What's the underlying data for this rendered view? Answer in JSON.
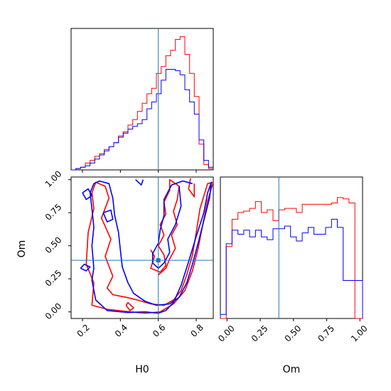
{
  "chart_data": {
    "type": "corner",
    "parameters": [
      "H0",
      "Om"
    ],
    "truth": {
      "H0": 0.6,
      "Om": 0.39
    },
    "colors": {
      "red_run": "#ff0000",
      "blue_run": "#0000ff",
      "truth": "#1f77b4"
    },
    "axes": {
      "H0": {
        "range": [
          0.14,
          0.89
        ],
        "ticks": [
          0.2,
          0.4,
          0.6,
          0.8
        ],
        "tick_labels": [
          "0.2",
          "0.4",
          "0.6",
          "0.8"
        ],
        "label": "H0"
      },
      "Om": {
        "range": [
          -0.05,
          1.02
        ],
        "ticks": [
          0.0,
          0.25,
          0.5,
          0.75,
          1.0
        ],
        "tick_labels": [
          "0.00",
          "0.25",
          "0.50",
          "0.75",
          "1.00"
        ],
        "label": "Om"
      }
    },
    "hist_H0": {
      "edges": [
        0.14,
        0.165,
        0.19,
        0.215,
        0.24,
        0.265,
        0.29,
        0.315,
        0.34,
        0.365,
        0.39,
        0.415,
        0.44,
        0.465,
        0.49,
        0.515,
        0.54,
        0.565,
        0.59,
        0.615,
        0.64,
        0.665,
        0.69,
        0.715,
        0.74,
        0.765,
        0.79,
        0.815,
        0.84,
        0.865,
        0.89
      ],
      "red": [
        0.0,
        0.01,
        0.02,
        0.05,
        0.07,
        0.1,
        0.12,
        0.15,
        0.17,
        0.2,
        0.25,
        0.28,
        0.33,
        0.37,
        0.43,
        0.49,
        0.56,
        0.6,
        0.71,
        0.76,
        0.84,
        0.88,
        0.96,
        0.98,
        0.85,
        0.71,
        0.54,
        0.19,
        0.04,
        0.01
      ],
      "blue": [
        0.0,
        0.01,
        0.02,
        0.03,
        0.05,
        0.08,
        0.11,
        0.14,
        0.17,
        0.2,
        0.24,
        0.27,
        0.3,
        0.32,
        0.34,
        0.37,
        0.45,
        0.5,
        0.56,
        0.66,
        0.74,
        0.74,
        0.73,
        0.7,
        0.59,
        0.5,
        0.41,
        0.22,
        0.07,
        0.02
      ]
    },
    "hist_Om": {
      "edges": [
        -0.05,
        -0.006,
        0.038,
        0.082,
        0.126,
        0.17,
        0.214,
        0.258,
        0.302,
        0.346,
        0.39,
        0.434,
        0.478,
        0.522,
        0.566,
        0.61,
        0.654,
        0.698,
        0.742,
        0.786,
        0.83,
        0.874,
        0.918,
        0.962,
        0.98,
        1.02
      ],
      "red": [
        0.0,
        0.53,
        0.73,
        0.78,
        0.79,
        0.81,
        0.86,
        0.78,
        0.8,
        0.72,
        0.8,
        0.81,
        0.81,
        0.78,
        0.84,
        0.84,
        0.84,
        0.84,
        0.84,
        0.85,
        0.89,
        0.88,
        0.85,
        0.0,
        0.0
      ],
      "blue": [
        0.03,
        0.55,
        0.65,
        0.62,
        0.65,
        0.6,
        0.65,
        0.6,
        0.58,
        0.66,
        0.66,
        0.68,
        0.6,
        0.57,
        0.63,
        0.67,
        0.62,
        0.62,
        0.67,
        0.73,
        0.67,
        0.28,
        0.28,
        0.28,
        0.28
      ]
    },
    "contours": {
      "red": [
        [
          [
            0.22,
            0.36
          ],
          [
            0.26,
            0.22
          ],
          [
            0.25,
            0.05
          ],
          [
            0.33,
            0.02
          ],
          [
            0.42,
            0.005
          ],
          [
            0.53,
            -0.01
          ],
          [
            0.61,
            0.0
          ],
          [
            0.68,
            0.06
          ],
          [
            0.74,
            0.16
          ],
          [
            0.78,
            0.31
          ],
          [
            0.81,
            0.48
          ],
          [
            0.84,
            0.7
          ],
          [
            0.86,
            0.84
          ],
          [
            0.89,
            0.98
          ],
          [
            0.86,
            0.97
          ],
          [
            0.82,
            0.78
          ],
          [
            0.8,
            0.6
          ],
          [
            0.78,
            0.43
          ],
          [
            0.75,
            0.28
          ],
          [
            0.72,
            0.16
          ],
          [
            0.68,
            0.09
          ],
          [
            0.63,
            0.05
          ],
          [
            0.56,
            0.06
          ],
          [
            0.49,
            0.09
          ],
          [
            0.43,
            0.11
          ],
          [
            0.36,
            0.13
          ],
          [
            0.33,
            0.18
          ],
          [
            0.36,
            0.27
          ],
          [
            0.32,
            0.42
          ],
          [
            0.35,
            0.55
          ],
          [
            0.3,
            0.71
          ],
          [
            0.34,
            0.86
          ],
          [
            0.32,
            0.95
          ],
          [
            0.27,
            0.98
          ],
          [
            0.25,
            0.9
          ],
          [
            0.26,
            0.78
          ],
          [
            0.23,
            0.6
          ],
          [
            0.22,
            0.36
          ]
        ],
        [
          [
            0.56,
            0.47
          ],
          [
            0.58,
            0.42
          ],
          [
            0.56,
            0.33
          ],
          [
            0.61,
            0.3
          ],
          [
            0.64,
            0.35
          ],
          [
            0.63,
            0.43
          ],
          [
            0.6,
            0.5
          ],
          [
            0.63,
            0.58
          ],
          [
            0.61,
            0.66
          ],
          [
            0.64,
            0.74
          ],
          [
            0.63,
            0.83
          ],
          [
            0.66,
            0.92
          ],
          [
            0.66,
            1.0
          ],
          [
            0.71,
            0.95
          ],
          [
            0.7,
            0.85
          ],
          [
            0.68,
            0.76
          ],
          [
            0.7,
            0.66
          ],
          [
            0.67,
            0.58
          ],
          [
            0.69,
            0.48
          ],
          [
            0.66,
            0.4
          ],
          [
            0.64,
            0.33
          ],
          [
            0.6,
            0.28
          ]
        ],
        [
          [
            0.77,
            1.01
          ],
          [
            0.76,
            0.93
          ],
          [
            0.79,
            0.87
          ],
          [
            0.79,
            0.97
          ]
        ],
        [
          [
            0.43,
            0.05
          ],
          [
            0.45,
            0.01
          ],
          [
            0.47,
            0.03
          ],
          [
            0.44,
            0.07
          ],
          [
            0.43,
            0.05
          ]
        ]
      ],
      "blue": [
        [
          [
            0.24,
            0.9
          ],
          [
            0.25,
            0.78
          ],
          [
            0.26,
            0.64
          ],
          [
            0.25,
            0.5
          ],
          [
            0.26,
            0.33
          ],
          [
            0.25,
            0.24
          ],
          [
            0.27,
            0.09
          ],
          [
            0.33,
            0.01
          ],
          [
            0.44,
            -0.005
          ],
          [
            0.53,
            0.0
          ],
          [
            0.6,
            -0.01
          ],
          [
            0.64,
            0.01
          ],
          [
            0.68,
            0.07
          ],
          [
            0.72,
            0.2
          ],
          [
            0.76,
            0.38
          ],
          [
            0.8,
            0.57
          ],
          [
            0.84,
            0.75
          ],
          [
            0.86,
            0.9
          ],
          [
            0.88,
            0.98
          ],
          [
            0.87,
            0.86
          ],
          [
            0.84,
            0.69
          ],
          [
            0.81,
            0.52
          ],
          [
            0.78,
            0.36
          ],
          [
            0.75,
            0.22
          ],
          [
            0.71,
            0.11
          ],
          [
            0.66,
            0.06
          ],
          [
            0.59,
            0.05
          ],
          [
            0.53,
            0.08
          ],
          [
            0.47,
            0.14
          ],
          [
            0.44,
            0.22
          ],
          [
            0.41,
            0.34
          ],
          [
            0.4,
            0.47
          ],
          [
            0.39,
            0.6
          ],
          [
            0.37,
            0.73
          ],
          [
            0.36,
            0.86
          ],
          [
            0.34,
            0.97
          ],
          [
            0.29,
            0.99
          ],
          [
            0.26,
            0.97
          ],
          [
            0.24,
            0.9
          ]
        ],
        [
          [
            0.71,
            0.95
          ],
          [
            0.72,
            0.8
          ],
          [
            0.69,
            0.66
          ],
          [
            0.65,
            0.55
          ],
          [
            0.66,
            0.45
          ],
          [
            0.63,
            0.37
          ],
          [
            0.6,
            0.33
          ],
          [
            0.57,
            0.37
          ],
          [
            0.57,
            0.44
          ],
          [
            0.6,
            0.52
          ],
          [
            0.61,
            0.62
          ],
          [
            0.63,
            0.73
          ],
          [
            0.63,
            0.85
          ],
          [
            0.67,
            0.96
          ],
          [
            0.73,
            0.99
          ],
          [
            0.78,
            0.97
          ]
        ],
        [
          [
            0.31,
            0.75
          ],
          [
            0.33,
            0.68
          ],
          [
            0.36,
            0.7
          ],
          [
            0.35,
            0.77
          ],
          [
            0.31,
            0.75
          ]
        ],
        [
          [
            0.2,
            0.9
          ],
          [
            0.22,
            0.85
          ],
          [
            0.25,
            0.88
          ],
          [
            0.23,
            0.93
          ],
          [
            0.2,
            0.9
          ]
        ],
        [
          [
            0.19,
            0.33
          ],
          [
            0.22,
            0.31
          ],
          [
            0.24,
            0.34
          ],
          [
            0.21,
            0.36
          ],
          [
            0.19,
            0.33
          ]
        ],
        [
          [
            0.48,
            1.0
          ],
          [
            0.51,
            0.96
          ],
          [
            0.52,
            1.0
          ]
        ]
      ]
    }
  }
}
